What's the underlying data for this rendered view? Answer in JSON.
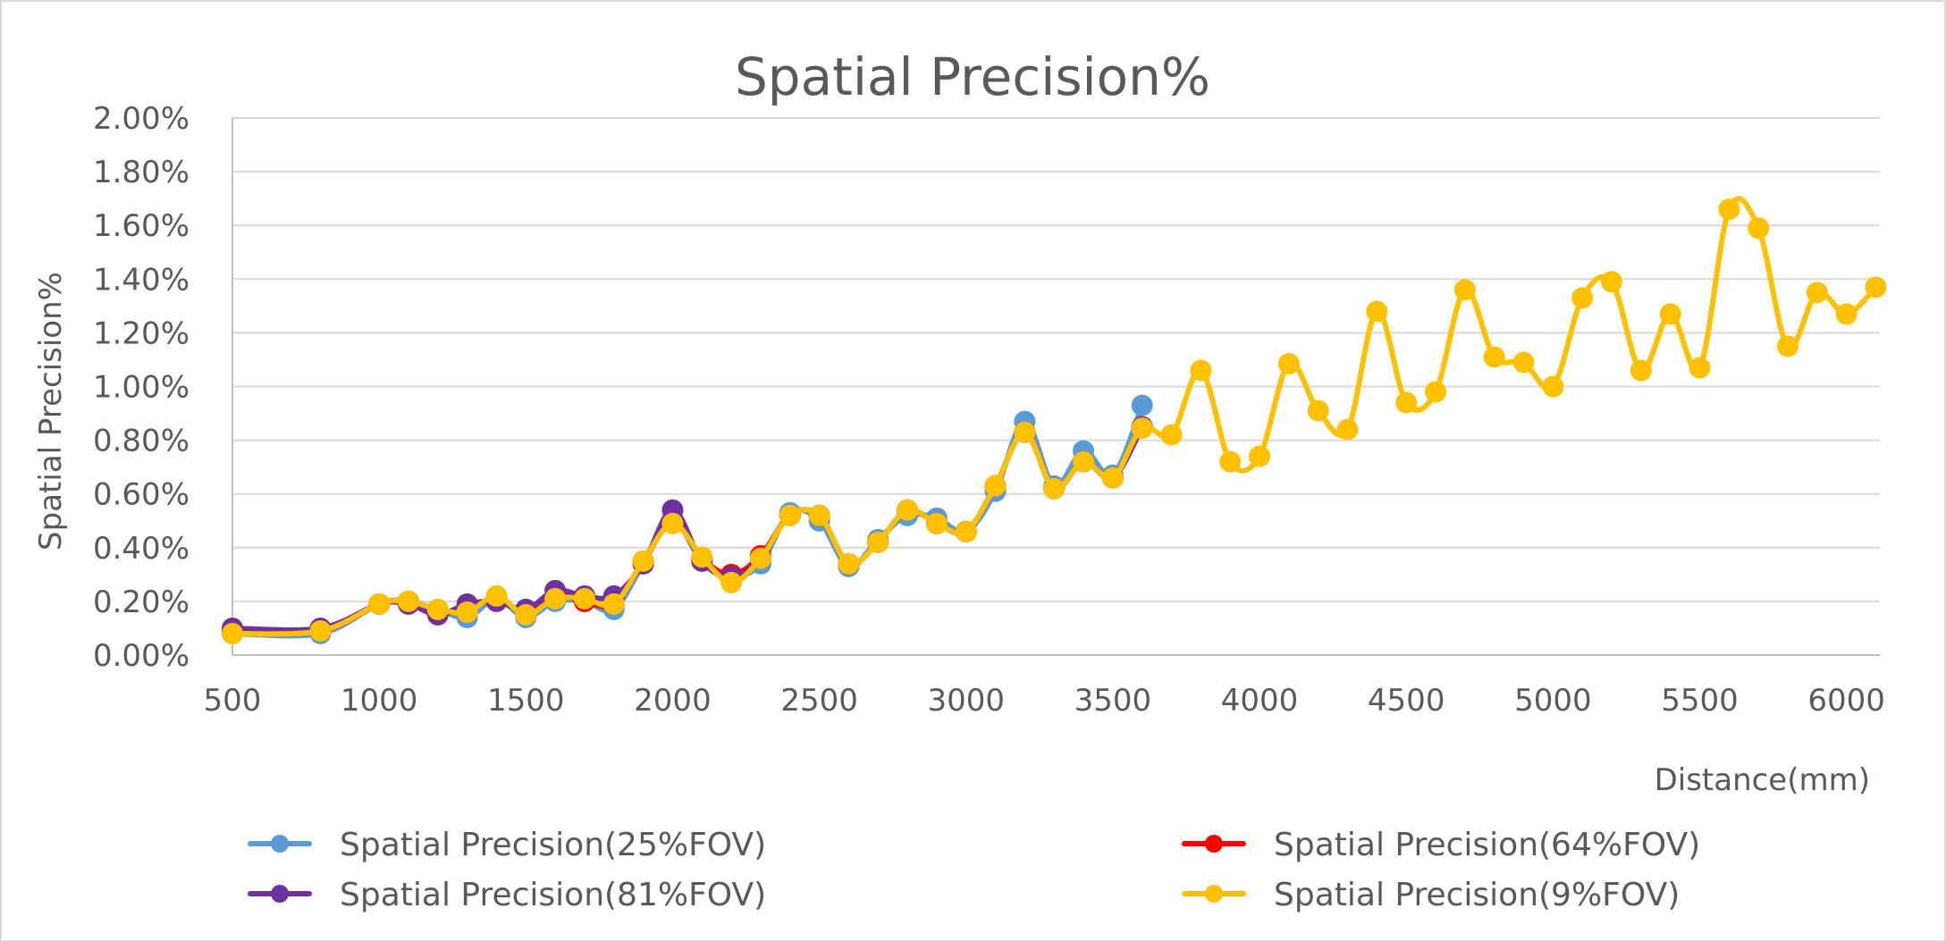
{
  "chart_data": {
    "type": "line",
    "title": "Spatial Precision%",
    "xlabel": "Distance(mm)",
    "ylabel": "Spatial Precision%",
    "xlim": [
      500,
      6100
    ],
    "ylim": [
      0,
      0.02
    ],
    "x_ticks": [
      "500",
      "1000",
      "1500",
      "2000",
      "2500",
      "3000",
      "3500",
      "4000",
      "4500",
      "5000",
      "5500",
      "6000"
    ],
    "x_tick_values": [
      500,
      1000,
      1500,
      2000,
      2500,
      3000,
      3500,
      4000,
      4500,
      5000,
      5500,
      6000
    ],
    "y_ticks": [
      "0.00%",
      "0.20%",
      "0.40%",
      "0.60%",
      "0.80%",
      "1.00%",
      "1.20%",
      "1.40%",
      "1.60%",
      "1.80%",
      "2.00%"
    ],
    "y_tick_values": [
      0,
      0.002,
      0.004,
      0.006,
      0.008,
      0.01,
      0.012,
      0.014,
      0.016,
      0.018,
      0.02
    ],
    "grid": "horizontal",
    "legend_placement": "bottom",
    "series": [
      {
        "name": "Spatial Precision(25%FOV)",
        "color": "#5B9BD5",
        "x": [
          500,
          800,
          1000,
          1100,
          1200,
          1300,
          1400,
          1500,
          1600,
          1700,
          1800,
          1900,
          2000,
          2100,
          2200,
          2300,
          2400,
          2500,
          2600,
          2700,
          2800,
          2900,
          3000,
          3100,
          3200,
          3300,
          3400,
          3500,
          3600
        ],
        "values": [
          0.0008,
          0.0008,
          0.0019,
          0.002,
          0.0017,
          0.0014,
          0.0021,
          0.0014,
          0.002,
          0.002,
          0.0017,
          0.0034,
          0.005,
          0.0035,
          0.0029,
          0.0034,
          0.0053,
          0.005,
          0.0033,
          0.0043,
          0.0052,
          0.0051,
          0.0046,
          0.0061,
          0.0087,
          0.0063,
          0.0076,
          0.0067,
          0.0093
        ]
      },
      {
        "name": "Spatial Precision(64%FOV)",
        "color": "#FF0000",
        "x": [
          500,
          800,
          1000,
          1100,
          1200,
          1300,
          1400,
          1500,
          1600,
          1700,
          1800,
          1900,
          2000,
          2100,
          2200,
          2300,
          2400,
          2500,
          2600,
          2700,
          2800,
          2900,
          3000,
          3100,
          3200,
          3300,
          3400,
          3500,
          3600
        ],
        "values": [
          0.0009,
          0.0009,
          0.0019,
          0.002,
          0.0016,
          0.0017,
          0.0021,
          0.0016,
          0.0022,
          0.002,
          0.0019,
          0.0035,
          0.005,
          0.0036,
          0.003,
          0.0037,
          0.0052,
          0.0052,
          0.0034,
          0.0042,
          0.0054,
          0.0049,
          0.0046,
          0.0063,
          0.0083,
          0.0062,
          0.0072,
          0.0066,
          0.0085
        ]
      },
      {
        "name": "Spatial Precision(81%FOV)",
        "color": "#7030A0",
        "x": [
          500,
          800,
          1000,
          1100,
          1200,
          1300,
          1400,
          1500,
          1600,
          1700,
          1800,
          1900,
          2000,
          2100,
          2200,
          2300,
          2400,
          2500,
          2600,
          2700,
          2800,
          2900,
          3000,
          3100,
          3200,
          3300,
          3400,
          3500,
          3600
        ],
        "values": [
          0.001,
          0.001,
          0.0019,
          0.0019,
          0.0015,
          0.0019,
          0.002,
          0.0017,
          0.0024,
          0.0022,
          0.0022,
          0.0034,
          0.0054,
          0.0035,
          0.0029,
          0.0036,
          0.0052,
          0.0052,
          0.0034,
          0.0042,
          0.0054,
          0.0049,
          0.0046,
          0.0063,
          0.0083,
          0.0062,
          0.0072,
          0.0066,
          0.0085
        ]
      },
      {
        "name": "Spatial Precision(9%FOV)",
        "color": "#FFC000",
        "x": [
          500,
          800,
          1000,
          1100,
          1200,
          1300,
          1400,
          1500,
          1600,
          1700,
          1800,
          1900,
          2000,
          2100,
          2200,
          2300,
          2400,
          2500,
          2600,
          2700,
          2800,
          2900,
          3000,
          3100,
          3200,
          3300,
          3400,
          3500,
          3600,
          3700,
          3800,
          3900,
          4000,
          4100,
          4200,
          4300,
          4400,
          4500,
          4600,
          4700,
          4800,
          4900,
          5000,
          5100,
          5200,
          5300,
          5400,
          5500,
          5600,
          5700,
          5800,
          5900,
          6000,
          6100
        ],
        "values": [
          0.0008,
          0.0009,
          0.0019,
          0.002,
          0.0017,
          0.0016,
          0.0022,
          0.0015,
          0.0021,
          0.0021,
          0.0019,
          0.0035,
          0.0049,
          0.00365,
          0.0027,
          0.0036,
          0.0052,
          0.0052,
          0.0034,
          0.0042,
          0.0054,
          0.0049,
          0.0046,
          0.0063,
          0.0083,
          0.0062,
          0.0072,
          0.0066,
          0.00845,
          0.0082,
          0.0106,
          0.0072,
          0.0074,
          0.01085,
          0.0091,
          0.0084,
          0.0128,
          0.0094,
          0.0098,
          0.0136,
          0.0111,
          0.0109,
          0.01,
          0.0133,
          0.0139,
          0.0106,
          0.0127,
          0.0107,
          0.0166,
          0.0159,
          0.0115,
          0.0135,
          0.0127,
          0.0137
        ]
      }
    ]
  }
}
